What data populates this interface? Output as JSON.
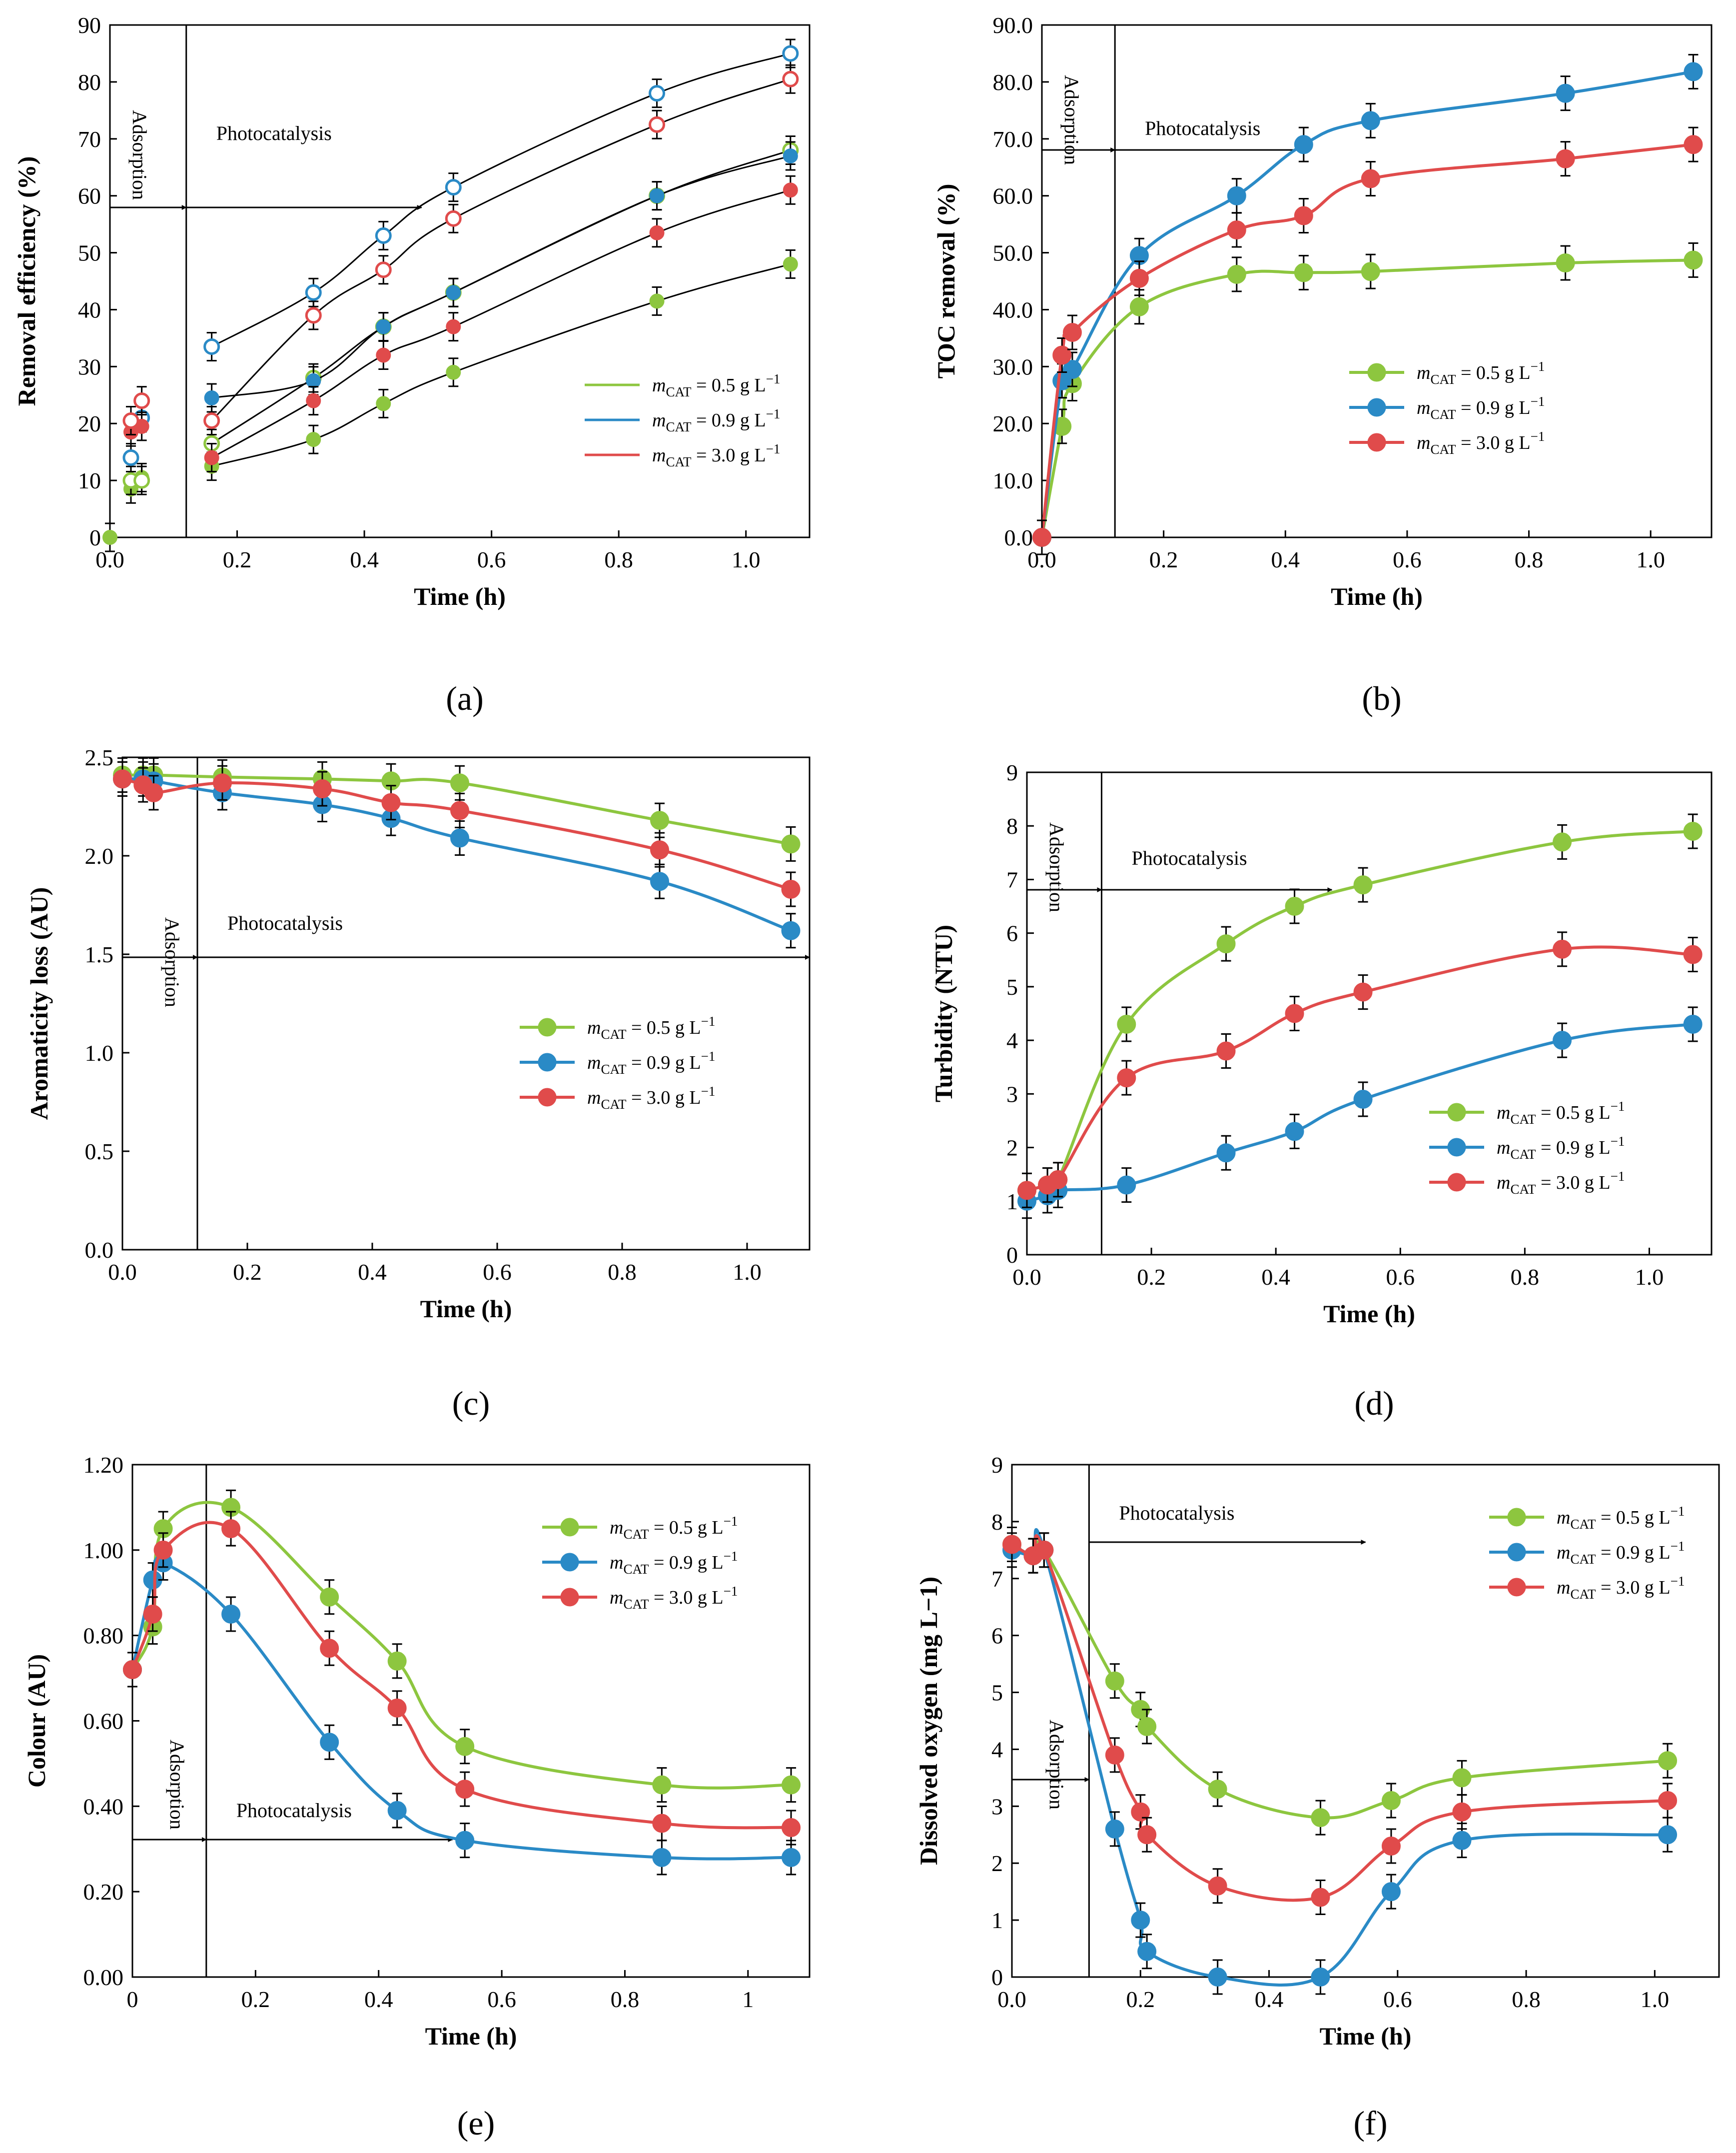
{
  "colors": {
    "green": "#8dc63f",
    "blue": "#2a8ac6",
    "red": "#e04b4b",
    "axis": "#000000"
  },
  "legend_labels": [
    {
      "m": "m",
      "sub": "CAT",
      "text": " = 0.5 g L",
      "sup": "−1"
    },
    {
      "m": "m",
      "sub": "CAT",
      "text": " = 0.9 g L",
      "sup": "−1"
    },
    {
      "m": "m",
      "sub": "CAT",
      "text": " = 3.0 g L",
      "sup": "−1"
    }
  ],
  "chart_data": [
    {
      "panel": "(a)",
      "type": "scatter",
      "xlabel": "Time (h)",
      "ylabel": "Removal efficiency (%)",
      "xlim": [
        0,
        1.1
      ],
      "ylim": [
        0,
        90
      ],
      "xticks": [
        "0.0",
        "0.2",
        "0.4",
        "0.6",
        "0.8",
        "1.0"
      ],
      "yticks": [
        "0",
        "10",
        "20",
        "30",
        "40",
        "50",
        "60",
        "70",
        "80",
        "90"
      ],
      "xtick_values": [
        0,
        0.2,
        0.4,
        0.6,
        0.8,
        1.0
      ],
      "ytick_values": [
        0,
        10,
        20,
        30,
        40,
        50,
        60,
        70,
        80,
        90
      ],
      "annotations": {
        "adsorption": "Adsorption",
        "photocatalysis": "Photocatalysis"
      },
      "adsorption_end": 0.12,
      "series": [
        {
          "name": "mCAT = 0.5 g L−1 (filled)",
          "color": "green",
          "hollow": false,
          "fit": true,
          "x": [
            0,
            0.033,
            0.05,
            0.16,
            0.32,
            0.43,
            0.54,
            0.86,
            1.07
          ],
          "y": [
            0,
            8.5,
            10.5,
            12.5,
            17.2,
            23.5,
            29,
            41.5,
            48
          ]
        },
        {
          "name": "mCAT = 0.5 g L−1 (open)",
          "color": "green",
          "hollow": true,
          "fit": true,
          "x": [
            0.033,
            0.05,
            0.16,
            0.32,
            0.43,
            0.54,
            0.86,
            1.07
          ],
          "y": [
            10,
            10,
            16.5,
            28,
            37,
            43,
            60,
            68
          ]
        },
        {
          "name": "mCAT = 0.9 g L−1 (filled)",
          "color": "blue",
          "hollow": false,
          "fit": true,
          "x": [
            0.16,
            0.32,
            0.43,
            0.54,
            0.86,
            1.07
          ],
          "y": [
            24.5,
            27.5,
            37,
            43,
            60,
            67
          ]
        },
        {
          "name": "mCAT = 0.9 g L−1 (open)",
          "color": "blue",
          "hollow": true,
          "fit": true,
          "x": [
            0.033,
            0.05,
            0.16,
            0.32,
            0.43,
            0.54,
            0.86,
            1.07
          ],
          "y": [
            14,
            21,
            33.5,
            43,
            53,
            61.5,
            78,
            85
          ]
        },
        {
          "name": "mCAT = 3.0 g L−1 (filled)",
          "color": "red",
          "hollow": false,
          "fit": true,
          "x": [
            0.033,
            0.05,
            0.16,
            0.32,
            0.43,
            0.54,
            0.86,
            1.07
          ],
          "y": [
            18.5,
            19.5,
            14,
            24,
            32,
            37,
            53.5,
            61
          ]
        },
        {
          "name": "mCAT = 3.0 g L−1 (open)",
          "color": "red",
          "hollow": true,
          "fit": true,
          "x": [
            0.033,
            0.05,
            0.16,
            0.32,
            0.43,
            0.54,
            0.86,
            1.07
          ],
          "y": [
            20.5,
            24,
            20.5,
            39,
            47,
            56,
            72.5,
            80.5
          ]
        }
      ]
    },
    {
      "panel": "(b)",
      "type": "line",
      "xlabel": "Time (h)",
      "ylabel": "TOC removal (%)",
      "xlim": [
        0,
        1.1
      ],
      "ylim": [
        0,
        90
      ],
      "xticks": [
        "0.0",
        "0.2",
        "0.4",
        "0.6",
        "0.8",
        "1.0"
      ],
      "yticks": [
        "0.0",
        "10.0",
        "20.0",
        "30.0",
        "40.0",
        "50.0",
        "60.0",
        "70.0",
        "80.0",
        "90.0"
      ],
      "xtick_values": [
        0,
        0.2,
        0.4,
        0.6,
        0.8,
        1.0
      ],
      "ytick_values": [
        0,
        10,
        20,
        30,
        40,
        50,
        60,
        70,
        80,
        90
      ],
      "annotations": {
        "adsorption": "Adsorption",
        "photocatalysis": "Photocatalysis"
      },
      "adsorption_end": 0.12,
      "series": [
        {
          "name": "mCAT = 0.5 g L−1",
          "color": "green",
          "x": [
            0,
            0.033,
            0.05,
            0.16,
            0.32,
            0.43,
            0.54,
            0.86,
            1.07
          ],
          "y": [
            0,
            19.5,
            27,
            40.5,
            46.2,
            46.5,
            46.7,
            48.2,
            48.7
          ]
        },
        {
          "name": "mCAT = 0.9 g L−1",
          "color": "blue",
          "x": [
            0,
            0.033,
            0.05,
            0.16,
            0.32,
            0.43,
            0.54,
            0.86,
            1.07
          ],
          "y": [
            0,
            27.5,
            29.5,
            49.5,
            60,
            69,
            73.2,
            78,
            81.8
          ]
        },
        {
          "name": "mCAT = 3.0 g L−1",
          "color": "red",
          "x": [
            0,
            0.033,
            0.05,
            0.16,
            0.32,
            0.43,
            0.54,
            0.86,
            1.07
          ],
          "y": [
            0,
            32,
            36,
            45.5,
            54,
            56.5,
            63,
            66.5,
            69
          ]
        }
      ]
    },
    {
      "panel": "(c)",
      "type": "line",
      "xlabel": "Time (h)",
      "ylabel": "Aromaticity loss (AU)",
      "xlim": [
        0,
        1.1
      ],
      "ylim": [
        0,
        2.5
      ],
      "xticks": [
        "0.0",
        "0.2",
        "0.4",
        "0.6",
        "0.8",
        "1.0"
      ],
      "yticks": [
        "0.0",
        "0.5",
        "1.0",
        "1.5",
        "2.0",
        "2.5"
      ],
      "xtick_values": [
        0,
        0.2,
        0.4,
        0.6,
        0.8,
        1.0
      ],
      "ytick_values": [
        0,
        0.5,
        1.0,
        1.5,
        2.0,
        2.5
      ],
      "annotations": {
        "adsorption": "Adsorption",
        "photocatalysis": "Photocatalysis"
      },
      "adsorption_end": 0.12,
      "series": [
        {
          "name": "mCAT = 0.5 g L−1",
          "color": "green",
          "x": [
            0,
            0.033,
            0.05,
            0.16,
            0.32,
            0.43,
            0.54,
            0.86,
            1.07
          ],
          "y": [
            2.41,
            2.41,
            2.41,
            2.4,
            2.39,
            2.38,
            2.37,
            2.18,
            2.06
          ]
        },
        {
          "name": "mCAT = 0.9 g L−1",
          "color": "blue",
          "x": [
            0,
            0.033,
            0.05,
            0.16,
            0.32,
            0.43,
            0.54,
            0.86,
            1.07
          ],
          "y": [
            2.39,
            2.39,
            2.38,
            2.32,
            2.26,
            2.19,
            2.09,
            1.87,
            1.62
          ]
        },
        {
          "name": "mCAT = 3.0 g L−1",
          "color": "red",
          "x": [
            0,
            0.033,
            0.05,
            0.16,
            0.32,
            0.43,
            0.54,
            0.86,
            1.07
          ],
          "y": [
            2.39,
            2.36,
            2.32,
            2.37,
            2.34,
            2.27,
            2.23,
            2.03,
            1.83
          ]
        }
      ]
    },
    {
      "panel": "(d)",
      "type": "line",
      "xlabel": "Time (h)",
      "ylabel": "Turbidity (NTU)",
      "xlim": [
        0,
        1.1
      ],
      "ylim": [
        0,
        9
      ],
      "xticks": [
        "0.0",
        "0.2",
        "0.4",
        "0.6",
        "0.8",
        "1.0"
      ],
      "yticks": [
        "0",
        "1",
        "2",
        "3",
        "4",
        "5",
        "6",
        "7",
        "8",
        "9"
      ],
      "xtick_values": [
        0,
        0.2,
        0.4,
        0.6,
        0.8,
        1.0
      ],
      "ytick_values": [
        0,
        1,
        2,
        3,
        4,
        5,
        6,
        7,
        8,
        9
      ],
      "annotations": {
        "adsorption": "Adsorption",
        "photocatalysis": "Photocatalysis"
      },
      "adsorption_end": 0.12,
      "series": [
        {
          "name": "mCAT = 0.5 g L−1",
          "color": "green",
          "x": [
            0,
            0.033,
            0.05,
            0.16,
            0.32,
            0.43,
            0.54,
            0.86,
            1.07
          ],
          "y": [
            1.2,
            1.3,
            1.4,
            4.3,
            5.8,
            6.5,
            6.9,
            7.7,
            7.9
          ]
        },
        {
          "name": "mCAT = 0.9 g L−1",
          "color": "blue",
          "x": [
            0,
            0.033,
            0.05,
            0.16,
            0.32,
            0.43,
            0.54,
            0.86,
            1.07
          ],
          "y": [
            1.0,
            1.1,
            1.2,
            1.3,
            1.9,
            2.3,
            2.9,
            4.0,
            4.3
          ]
        },
        {
          "name": "mCAT = 3.0 g L−1",
          "color": "red",
          "x": [
            0,
            0.033,
            0.05,
            0.16,
            0.32,
            0.43,
            0.54,
            0.86,
            1.07
          ],
          "y": [
            1.2,
            1.3,
            1.4,
            3.3,
            3.8,
            4.5,
            4.9,
            5.7,
            5.6
          ]
        }
      ]
    },
    {
      "panel": "(e)",
      "type": "line",
      "xlabel": "Time (h)",
      "ylabel": "Colour (AU)",
      "xlim": [
        0,
        1.1
      ],
      "ylim": [
        0,
        1.2
      ],
      "xticks": [
        "0",
        "0.2",
        "0.4",
        "0.6",
        "0.8",
        "1"
      ],
      "yticks": [
        "0.00",
        "0.20",
        "0.40",
        "0.60",
        "0.80",
        "1.00",
        "1.20"
      ],
      "xtick_values": [
        0,
        0.2,
        0.4,
        0.6,
        0.8,
        1.0
      ],
      "ytick_values": [
        0,
        0.2,
        0.4,
        0.6,
        0.8,
        1.0,
        1.2
      ],
      "annotations": {
        "adsorption": "Adsorption",
        "photocatalysis": "Photocatalysis"
      },
      "adsorption_end": 0.12,
      "series": [
        {
          "name": "mCAT = 0.5 g L−1",
          "color": "green",
          "x": [
            0,
            0.033,
            0.05,
            0.16,
            0.32,
            0.43,
            0.54,
            0.86,
            1.07
          ],
          "y": [
            0.72,
            0.82,
            1.05,
            1.1,
            0.89,
            0.74,
            0.54,
            0.45,
            0.45
          ]
        },
        {
          "name": "mCAT = 0.9 g L−1",
          "color": "blue",
          "x": [
            0,
            0.033,
            0.05,
            0.16,
            0.32,
            0.43,
            0.54,
            0.86,
            1.07
          ],
          "y": [
            0.72,
            0.93,
            0.97,
            0.85,
            0.55,
            0.39,
            0.32,
            0.28,
            0.28
          ]
        },
        {
          "name": "mCAT = 3.0 g L−1",
          "color": "red",
          "x": [
            0,
            0.033,
            0.05,
            0.16,
            0.32,
            0.43,
            0.54,
            0.86,
            1.07
          ],
          "y": [
            0.72,
            0.85,
            1.0,
            1.05,
            0.77,
            0.63,
            0.44,
            0.36,
            0.35
          ]
        }
      ]
    },
    {
      "panel": "(f)",
      "type": "line",
      "xlabel": "Time (h)",
      "ylabel": "Dissolved oxygen (mg L−1)",
      "xlim": [
        0,
        1.1
      ],
      "ylim": [
        0,
        9
      ],
      "xticks": [
        "0.0",
        "0.2",
        "0.4",
        "0.6",
        "0.8",
        "1.0"
      ],
      "yticks": [
        "0",
        "1",
        "2",
        "3",
        "4",
        "5",
        "6",
        "7",
        "8",
        "9"
      ],
      "xtick_values": [
        0,
        0.2,
        0.4,
        0.6,
        0.8,
        1.0
      ],
      "ytick_values": [
        0,
        1,
        2,
        3,
        4,
        5,
        6,
        7,
        8,
        9
      ],
      "annotations": {
        "adsorption": "Adsorption",
        "photocatalysis": "Photocatalysis"
      },
      "adsorption_end": 0.12,
      "series": [
        {
          "name": "mCAT = 0.5 g L−1",
          "color": "green",
          "x": [
            0,
            0.033,
            0.05,
            0.16,
            0.2,
            0.21,
            0.32,
            0.48,
            0.59,
            0.7,
            1.02
          ],
          "y": [
            7.6,
            7.4,
            7.5,
            5.2,
            4.7,
            4.4,
            3.3,
            2.8,
            3.1,
            3.5,
            3.8
          ]
        },
        {
          "name": "mCAT = 0.9 g L−1",
          "color": "blue",
          "x": [
            0,
            0.033,
            0.05,
            0.16,
            0.2,
            0.21,
            0.32,
            0.48,
            0.59,
            0.7,
            1.02
          ],
          "y": [
            7.5,
            7.4,
            7.5,
            2.6,
            1.0,
            0.45,
            0.0,
            0.0,
            1.5,
            2.4,
            2.5
          ]
        },
        {
          "name": "mCAT = 3.0 g L−1",
          "color": "red",
          "x": [
            0,
            0.033,
            0.05,
            0.16,
            0.2,
            0.21,
            0.32,
            0.48,
            0.59,
            0.7,
            1.02
          ],
          "y": [
            7.6,
            7.4,
            7.5,
            3.9,
            2.9,
            2.5,
            1.6,
            1.4,
            2.3,
            2.9,
            3.1
          ]
        }
      ]
    }
  ]
}
